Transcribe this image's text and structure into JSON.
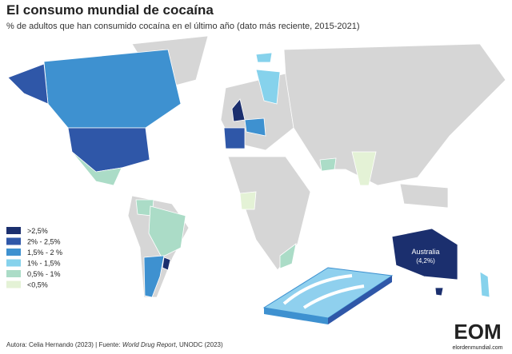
{
  "header": {
    "title": "El consumo mundial de cocaína",
    "subtitle": "% de adultos que han consumido cocaína en el último año (dato más reciente, 2015-2021)"
  },
  "legend": {
    "items": [
      {
        "label": ">2,5%",
        "color": "#1b2f6e"
      },
      {
        "label": "2%  - 2,5%",
        "color": "#2f57a8"
      },
      {
        "label": "1,5% - 2 %",
        "color": "#3e91d0"
      },
      {
        "label": "1% - 1,5%",
        "color": "#86d2ec"
      },
      {
        "label": "0,5% - 1%",
        "color": "#abdcc7"
      },
      {
        "label": "<0,5%",
        "color": "#e4f2d6"
      }
    ]
  },
  "annotation": {
    "label": "Australia",
    "value": "(4,2%)"
  },
  "footer": {
    "author": "Autora: Celia Hernando (2023) | Fuente: ",
    "source_italic": "World Drug Report",
    "source_suffix": ", UNODC (2023)"
  },
  "logo": {
    "text": "EOM",
    "url": "elordenmundial.com"
  }
}
